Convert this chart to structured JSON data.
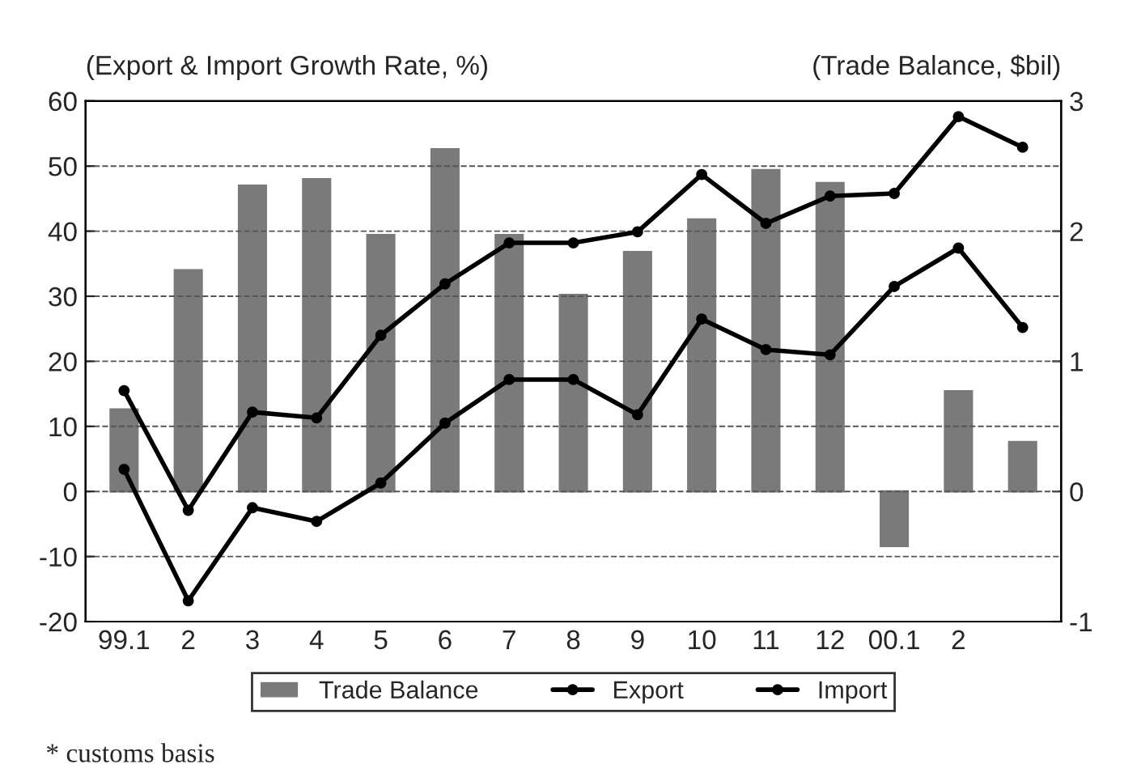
{
  "chart_data": {
    "type": "bar",
    "ylabel": "(Export & Import Growth Rate, %)",
    "y2label": "(Trade Balance, $bil)",
    "categories": [
      "99.1",
      "2",
      "3",
      "4",
      "5",
      "6",
      "7",
      "8",
      "9",
      "10",
      "11",
      "12",
      "00.1",
      "2",
      null
    ],
    "series": [
      {
        "name": "Trade Balance",
        "axis": "y2",
        "color": "#7a7a7a",
        "values": [
          0.63,
          1.7,
          2.35,
          2.4,
          1.97,
          2.63,
          1.97,
          1.51,
          1.84,
          2.09,
          2.47,
          2.37,
          -0.42,
          0.77,
          0.38
        ]
      },
      {
        "name": "Export",
        "type": "line",
        "color": "#000000",
        "values": [
          3.4,
          -16.8,
          -2.5,
          -4.6,
          1.3,
          10.5,
          17.2,
          17.2,
          11.8,
          26.5,
          21.8,
          21.0,
          31.5,
          37.4,
          25.2
        ]
      },
      {
        "name": "Import",
        "type": "line",
        "color": "#000000",
        "values": [
          15.5,
          -2.9,
          12.2,
          11.3,
          24.0,
          31.9,
          38.2,
          38.2,
          39.9,
          48.7,
          41.2,
          45.4,
          45.8,
          57.6,
          52.9
        ]
      }
    ],
    "ylim": [
      -20,
      60
    ],
    "yticks": [
      -20,
      -10,
      0,
      10,
      20,
      30,
      40,
      50,
      60
    ],
    "y2lim": [
      -1,
      3
    ],
    "y2ticks": [
      -1,
      0,
      1,
      2,
      3
    ],
    "grid": "y",
    "legend": "bottom",
    "marker": "circle",
    "line_style": "solid",
    "annotations": [
      "* customs basis"
    ]
  }
}
